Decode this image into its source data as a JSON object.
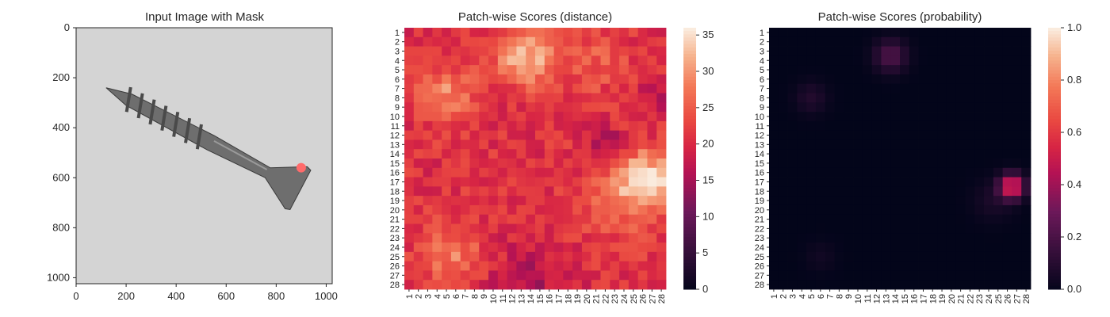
{
  "chart_data": [
    {
      "type": "image",
      "title": "Input Image with Mask",
      "xlim": [
        0,
        1024
      ],
      "ylim": [
        1024,
        0
      ],
      "x_ticks": [
        0,
        200,
        400,
        600,
        800,
        1000
      ],
      "y_ticks": [
        0,
        200,
        400,
        600,
        800,
        1000
      ],
      "image": {
        "background_color": "#d4d4d4",
        "object": "screw",
        "object_color": "#6e6e6e",
        "screw_tip": [
          120,
          240
        ],
        "screw_head": [
          880,
          640
        ],
        "mask_color": "#ff6b6b",
        "mask_center": [
          900,
          560
        ]
      }
    },
    {
      "type": "heatmap",
      "title": "Patch-wise Scores (distance)",
      "x_tick_labels": [
        "1",
        "2",
        "3",
        "4",
        "5",
        "6",
        "7",
        "8",
        "9",
        "10",
        "11",
        "12",
        "13",
        "14",
        "15",
        "16",
        "17",
        "18",
        "19",
        "20",
        "21",
        "22",
        "23",
        "24",
        "25",
        "26",
        "27",
        "28"
      ],
      "y_tick_labels": [
        "1",
        "2",
        "3",
        "4",
        "5",
        "6",
        "7",
        "8",
        "9",
        "10",
        "11",
        "12",
        "13",
        "14",
        "15",
        "16",
        "17",
        "18",
        "19",
        "20",
        "21",
        "22",
        "23",
        "24",
        "25",
        "26",
        "27",
        "28"
      ],
      "colorbar": {
        "min": 0,
        "max": 36,
        "ticks": [
          0,
          5,
          10,
          15,
          20,
          25,
          30,
          35
        ]
      },
      "base_value": 21,
      "noise_amplitude": 3,
      "hotspots": [
        {
          "row": 3.5,
          "col": 13.5,
          "sigma": 2.2,
          "value": 12
        },
        {
          "row": 7.5,
          "col": 5,
          "sigma": 2.0,
          "value": 8
        },
        {
          "row": 16.8,
          "col": 26.5,
          "sigma": 2.0,
          "value": 13
        },
        {
          "row": 18.5,
          "col": 24,
          "sigma": 3.0,
          "value": 6
        },
        {
          "row": 24.8,
          "col": 5.5,
          "sigma": 2.2,
          "value": 7
        },
        {
          "row": 4,
          "col": 21,
          "sigma": 2.5,
          "value": 4
        },
        {
          "row": 13,
          "col": 22,
          "sigma": 1.5,
          "value": -6
        },
        {
          "row": 28,
          "col": 14,
          "sigma": 3.0,
          "value": -5
        },
        {
          "row": 8,
          "col": 28,
          "sigma": 1.5,
          "value": -4
        }
      ]
    },
    {
      "type": "heatmap",
      "title": "Patch-wise Scores (probability)",
      "x_tick_labels": [
        "1",
        "2",
        "3",
        "4",
        "5",
        "6",
        "7",
        "8",
        "9",
        "10",
        "11",
        "12",
        "13",
        "14",
        "15",
        "16",
        "17",
        "18",
        "19",
        "20",
        "21",
        "22",
        "23",
        "24",
        "25",
        "26",
        "27",
        "28"
      ],
      "y_tick_labels": [
        "1",
        "2",
        "3",
        "4",
        "5",
        "6",
        "7",
        "8",
        "9",
        "10",
        "11",
        "12",
        "13",
        "14",
        "15",
        "16",
        "17",
        "18",
        "19",
        "20",
        "21",
        "22",
        "23",
        "24",
        "25",
        "26",
        "27",
        "28"
      ],
      "colorbar": {
        "min": 0,
        "max": 1,
        "ticks": [
          0.0,
          0.2,
          0.4,
          0.6,
          0.8,
          1.0
        ],
        "tick_labels": [
          "0.0",
          "0.2",
          "0.4",
          "0.6",
          "0.8",
          "1.0"
        ]
      },
      "base_value": 0,
      "hotspots": [
        {
          "row": 3.5,
          "col": 13.5,
          "sigma": 1.2,
          "value": 0.22
        },
        {
          "row": 8,
          "col": 5,
          "sigma": 1.2,
          "value": 0.09
        },
        {
          "row": 17.5,
          "col": 26.5,
          "sigma": 0.9,
          "value": 0.6
        },
        {
          "row": 19,
          "col": 24.5,
          "sigma": 1.5,
          "value": 0.07
        },
        {
          "row": 25,
          "col": 6,
          "sigma": 1.2,
          "value": 0.04
        }
      ]
    }
  ]
}
